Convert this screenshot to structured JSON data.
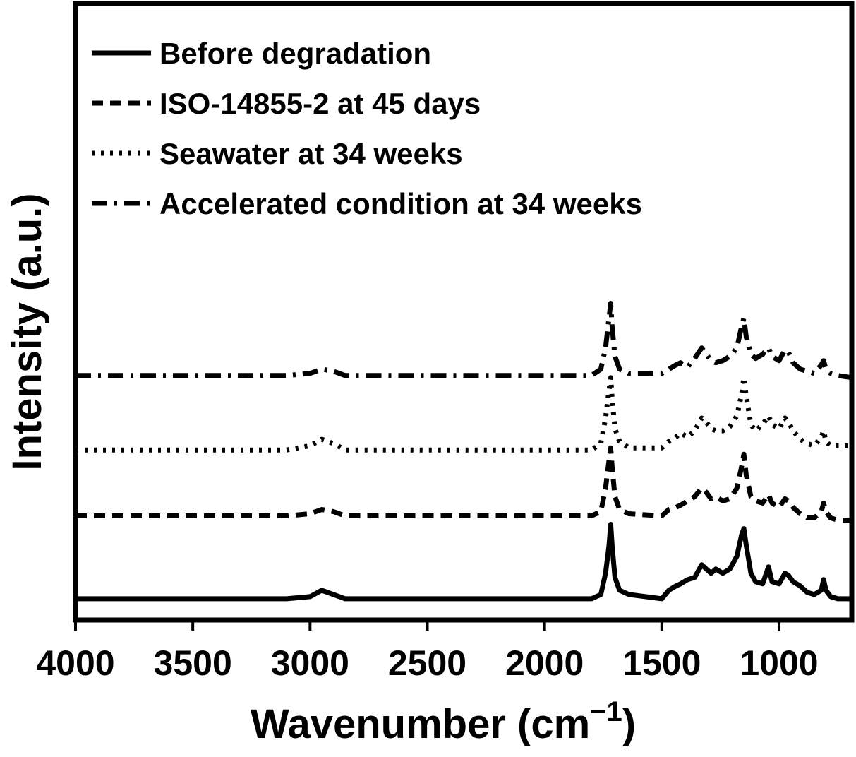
{
  "chart_data": {
    "type": "line",
    "title": "",
    "xlabel": "Wavenumber (cm",
    "xlabel_sup": "−1",
    "xlabel_close": ")",
    "ylabel": "Intensity (a.u.)",
    "xlim": [
      4000,
      690
    ],
    "ylim": [
      0,
      290
    ],
    "x_reversed": true,
    "x_ticks": [
      4000,
      3500,
      3000,
      2500,
      2000,
      1500,
      1000
    ],
    "x_tick_labels": [
      "4000",
      "3500",
      "3000",
      "2500",
      "2000",
      "1500",
      "1000"
    ],
    "y_ticks": [],
    "grid": false,
    "legend_position": "top-left",
    "series": [
      {
        "name": "Before degradation",
        "style": "solid",
        "color": "#000000",
        "points": [
          [
            4000,
            10
          ],
          [
            3100,
            10
          ],
          [
            3000,
            11
          ],
          [
            2950,
            14
          ],
          [
            2900,
            12
          ],
          [
            2850,
            10
          ],
          [
            2000,
            10
          ],
          [
            1800,
            10
          ],
          [
            1760,
            12
          ],
          [
            1740,
            22
          ],
          [
            1725,
            35
          ],
          [
            1718,
            45
          ],
          [
            1712,
            35
          ],
          [
            1700,
            20
          ],
          [
            1680,
            14
          ],
          [
            1640,
            12
          ],
          [
            1500,
            10
          ],
          [
            1470,
            14
          ],
          [
            1440,
            16
          ],
          [
            1420,
            17
          ],
          [
            1390,
            19
          ],
          [
            1360,
            20
          ],
          [
            1330,
            26
          ],
          [
            1310,
            24
          ],
          [
            1290,
            22
          ],
          [
            1270,
            24
          ],
          [
            1240,
            22
          ],
          [
            1210,
            24
          ],
          [
            1180,
            30
          ],
          [
            1160,
            40
          ],
          [
            1150,
            43
          ],
          [
            1140,
            35
          ],
          [
            1120,
            22
          ],
          [
            1100,
            18
          ],
          [
            1070,
            17
          ],
          [
            1045,
            25
          ],
          [
            1030,
            18
          ],
          [
            1000,
            17
          ],
          [
            975,
            22
          ],
          [
            960,
            21
          ],
          [
            940,
            18
          ],
          [
            910,
            16
          ],
          [
            880,
            13
          ],
          [
            850,
            12
          ],
          [
            820,
            14
          ],
          [
            810,
            19
          ],
          [
            800,
            14
          ],
          [
            780,
            11
          ],
          [
            750,
            10
          ],
          [
            690,
            10
          ]
        ]
      },
      {
        "name": "ISO-14855-2 at 45 days",
        "style": "dashed",
        "color": "#000000",
        "points": [
          [
            4000,
            49
          ],
          [
            3100,
            49
          ],
          [
            3000,
            50
          ],
          [
            2950,
            52
          ],
          [
            2900,
            51
          ],
          [
            2850,
            49
          ],
          [
            2000,
            49
          ],
          [
            1800,
            49
          ],
          [
            1760,
            51
          ],
          [
            1740,
            62
          ],
          [
            1725,
            75
          ],
          [
            1718,
            81
          ],
          [
            1712,
            72
          ],
          [
            1700,
            58
          ],
          [
            1680,
            52
          ],
          [
            1640,
            50
          ],
          [
            1500,
            49
          ],
          [
            1470,
            52
          ],
          [
            1440,
            53
          ],
          [
            1420,
            54
          ],
          [
            1390,
            56
          ],
          [
            1360,
            58
          ],
          [
            1330,
            62
          ],
          [
            1310,
            60
          ],
          [
            1290,
            57
          ],
          [
            1270,
            58
          ],
          [
            1240,
            56
          ],
          [
            1210,
            57
          ],
          [
            1180,
            62
          ],
          [
            1160,
            72
          ],
          [
            1150,
            78
          ],
          [
            1140,
            68
          ],
          [
            1120,
            58
          ],
          [
            1100,
            56
          ],
          [
            1070,
            55
          ],
          [
            1045,
            59
          ],
          [
            1030,
            55
          ],
          [
            1000,
            53
          ],
          [
            975,
            57
          ],
          [
            960,
            56
          ],
          [
            940,
            53
          ],
          [
            910,
            50
          ],
          [
            880,
            48
          ],
          [
            850,
            48
          ],
          [
            820,
            51
          ],
          [
            810,
            55
          ],
          [
            800,
            51
          ],
          [
            780,
            48
          ],
          [
            750,
            47
          ],
          [
            690,
            47
          ]
        ]
      },
      {
        "name": "Seawater at 34 weeks",
        "style": "dotted",
        "color": "#000000",
        "points": [
          [
            4000,
            80
          ],
          [
            3100,
            80
          ],
          [
            3000,
            82
          ],
          [
            2950,
            85
          ],
          [
            2900,
            83
          ],
          [
            2850,
            80
          ],
          [
            2000,
            80
          ],
          [
            1800,
            80
          ],
          [
            1760,
            83
          ],
          [
            1740,
            95
          ],
          [
            1725,
            108
          ],
          [
            1718,
            114
          ],
          [
            1712,
            104
          ],
          [
            1700,
            90
          ],
          [
            1680,
            84
          ],
          [
            1640,
            81
          ],
          [
            1500,
            81
          ],
          [
            1470,
            84
          ],
          [
            1440,
            86
          ],
          [
            1420,
            88
          ],
          [
            1390,
            86
          ],
          [
            1360,
            89
          ],
          [
            1330,
            95
          ],
          [
            1310,
            93
          ],
          [
            1290,
            90
          ],
          [
            1270,
            89
          ],
          [
            1240,
            89
          ],
          [
            1210,
            91
          ],
          [
            1180,
            96
          ],
          [
            1160,
            106
          ],
          [
            1150,
            114
          ],
          [
            1140,
            105
          ],
          [
            1120,
            92
          ],
          [
            1100,
            89
          ],
          [
            1070,
            92
          ],
          [
            1045,
            96
          ],
          [
            1030,
            92
          ],
          [
            1000,
            90
          ],
          [
            975,
            95
          ],
          [
            960,
            93
          ],
          [
            940,
            89
          ],
          [
            910,
            85
          ],
          [
            880,
            83
          ],
          [
            850,
            82
          ],
          [
            820,
            86
          ],
          [
            810,
            89
          ],
          [
            800,
            84
          ],
          [
            780,
            82
          ],
          [
            750,
            82
          ],
          [
            690,
            82
          ]
        ]
      },
      {
        "name": "Accelerated condition at 34 weeks",
        "style": "dashdot",
        "color": "#000000",
        "points": [
          [
            4000,
            115
          ],
          [
            3100,
            115
          ],
          [
            3000,
            116
          ],
          [
            2950,
            118
          ],
          [
            2900,
            117
          ],
          [
            2850,
            115
          ],
          [
            2000,
            115
          ],
          [
            1800,
            115
          ],
          [
            1760,
            118
          ],
          [
            1740,
            128
          ],
          [
            1725,
            142
          ],
          [
            1718,
            149
          ],
          [
            1712,
            138
          ],
          [
            1700,
            124
          ],
          [
            1680,
            118
          ],
          [
            1640,
            116
          ],
          [
            1500,
            116
          ],
          [
            1470,
            118
          ],
          [
            1440,
            120
          ],
          [
            1420,
            121
          ],
          [
            1390,
            119
          ],
          [
            1360,
            123
          ],
          [
            1330,
            128
          ],
          [
            1310,
            125
          ],
          [
            1290,
            122
          ],
          [
            1270,
            121
          ],
          [
            1240,
            122
          ],
          [
            1210,
            124
          ],
          [
            1180,
            128
          ],
          [
            1160,
            138
          ],
          [
            1150,
            142
          ],
          [
            1140,
            133
          ],
          [
            1120,
            125
          ],
          [
            1100,
            123
          ],
          [
            1070,
            125
          ],
          [
            1045,
            128
          ],
          [
            1030,
            124
          ],
          [
            1000,
            122
          ],
          [
            975,
            127
          ],
          [
            960,
            126
          ],
          [
            940,
            121
          ],
          [
            910,
            118
          ],
          [
            880,
            117
          ],
          [
            850,
            116
          ],
          [
            820,
            120
          ],
          [
            810,
            122
          ],
          [
            800,
            118
          ],
          [
            780,
            116
          ],
          [
            750,
            115
          ],
          [
            690,
            114
          ]
        ]
      }
    ]
  }
}
